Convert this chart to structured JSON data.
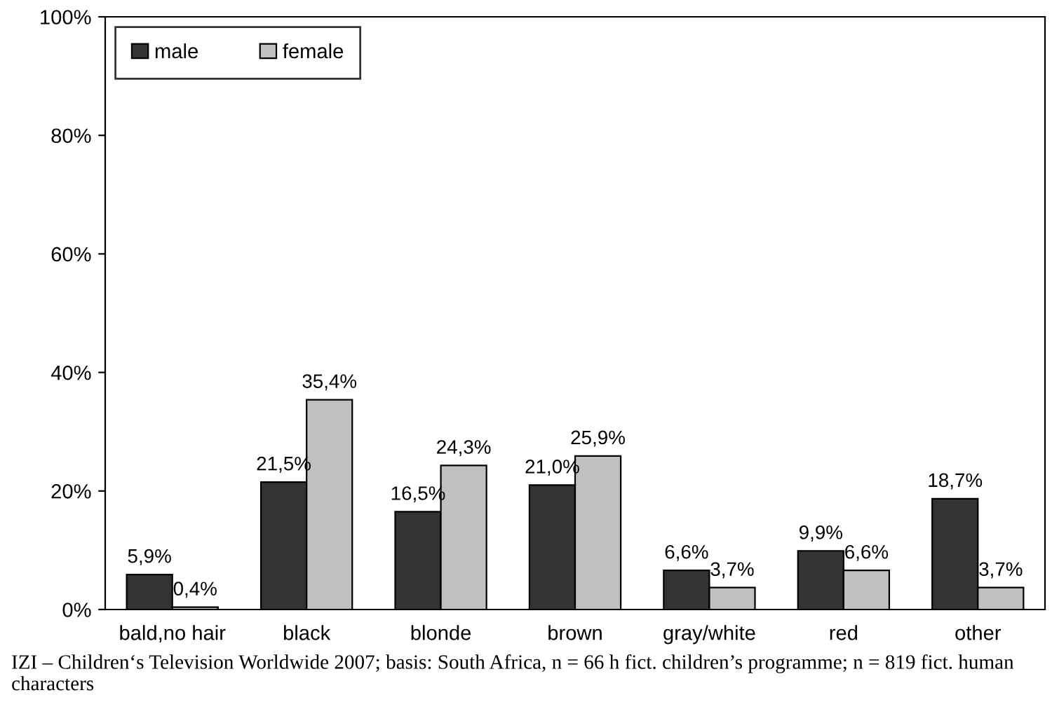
{
  "chart_data": {
    "type": "bar",
    "categories": [
      "bald,no hair",
      "black",
      "blonde",
      "brown",
      "gray/white",
      "red",
      "other"
    ],
    "series": [
      {
        "name": "male",
        "color": "#333333",
        "values": [
          5.9,
          21.5,
          16.5,
          21.0,
          6.6,
          9.9,
          18.7
        ],
        "value_labels": [
          "5,9%",
          "21,5%",
          "16,5%",
          "21,0%",
          "6,6%",
          "9,9%",
          "18,7%"
        ]
      },
      {
        "name": "female",
        "color": "#c0c0c0",
        "values": [
          0.4,
          35.4,
          24.3,
          25.9,
          3.7,
          6.6,
          3.7
        ],
        "value_labels": [
          "0,4%",
          "35,4%",
          "24,3%",
          "25,9%",
          "3,7%",
          "6,6%",
          "3,7%"
        ]
      }
    ],
    "ylim": [
      0,
      100
    ],
    "yticks": [
      {
        "value": 0,
        "label": "0%"
      },
      {
        "value": 20,
        "label": "20%"
      },
      {
        "value": 40,
        "label": "40%"
      },
      {
        "value": 60,
        "label": "60%"
      },
      {
        "value": 80,
        "label": "80%"
      },
      {
        "value": 100,
        "label": "100%"
      }
    ],
    "legend": "top left",
    "grid": false,
    "annotations": [
      "IZI – Children‘s Television Worldwide 2007; basis: South Africa, n = 66 h fict. children’s programme; n = 819 fict. human characters"
    ]
  }
}
